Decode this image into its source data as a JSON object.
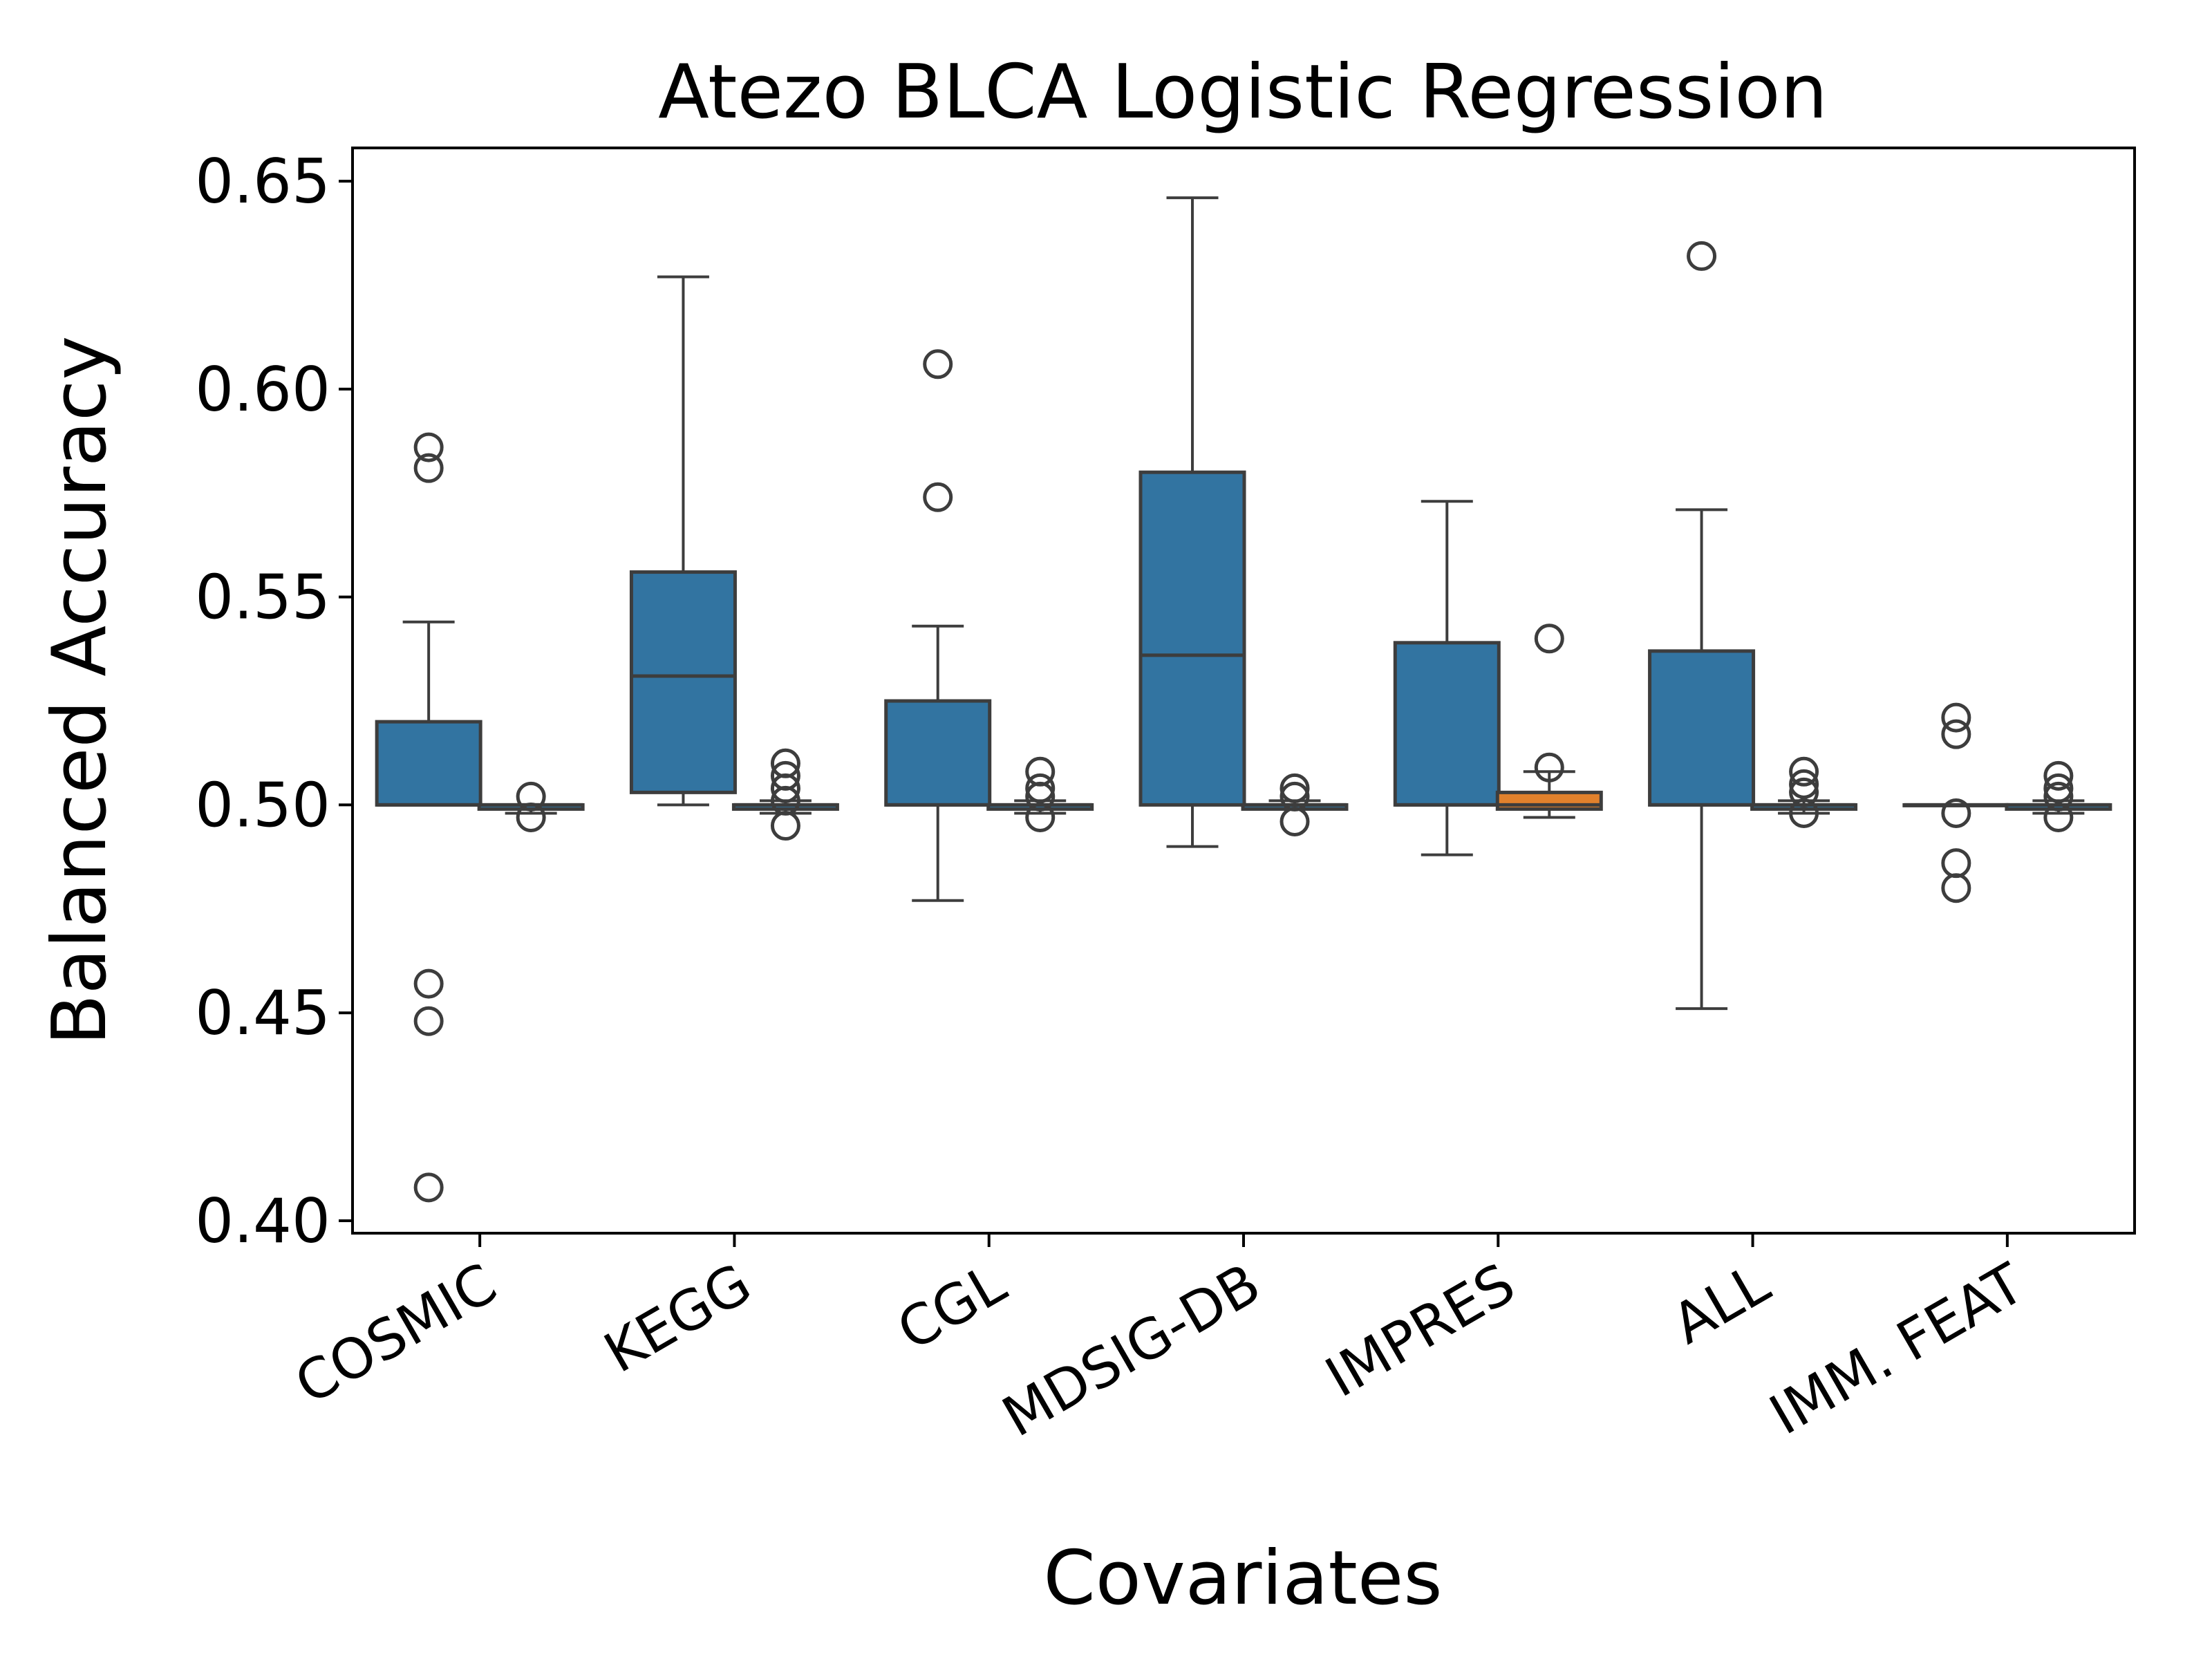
{
  "chart_data": {
    "type": "box",
    "title": "Atezo  BLCA  Logistic Regression",
    "xlabel": "Covariates",
    "ylabel": "Balanced Accuracy",
    "ylim": [
      0.397,
      0.658
    ],
    "yticks": [
      "0.40",
      "0.45",
      "0.50",
      "0.55",
      "0.60",
      "0.65"
    ],
    "categories": [
      "COSMIC",
      "KEGG",
      "CGL",
      "MDSIG-DB",
      "IMPRES",
      "ALL",
      "IMM. FEAT"
    ],
    "colors": {
      "series_a": "#3274a1",
      "series_b_impres": "#e1812c",
      "line": "#3d3d3d"
    },
    "series": [
      {
        "boxes": [
          {
            "category": "COSMIC",
            "whislo": 0.5,
            "q1": 0.5,
            "med": 0.5,
            "q3": 0.52,
            "whishi": 0.544,
            "fliers": [
              0.586,
              0.581,
              0.457,
              0.448,
              0.408
            ]
          },
          {
            "category": "KEGG",
            "whislo": 0.5,
            "q1": 0.503,
            "med": 0.531,
            "q3": 0.556,
            "whishi": 0.627,
            "fliers": []
          },
          {
            "category": "CGL",
            "whislo": 0.477,
            "q1": 0.5,
            "med": 0.5,
            "q3": 0.525,
            "whishi": 0.543,
            "fliers": [
              0.606,
              0.574
            ]
          },
          {
            "category": "MDSIG-DB",
            "whislo": 0.49,
            "q1": 0.5,
            "med": 0.536,
            "q3": 0.58,
            "whishi": 0.646,
            "fliers": []
          },
          {
            "category": "IMPRES",
            "whislo": 0.488,
            "q1": 0.5,
            "med": 0.5,
            "q3": 0.539,
            "whishi": 0.573,
            "fliers": []
          },
          {
            "category": "ALL",
            "whislo": 0.451,
            "q1": 0.5,
            "med": 0.5,
            "q3": 0.537,
            "whishi": 0.571,
            "fliers": [
              0.632
            ]
          },
          {
            "category": "IMM. FEAT",
            "whislo": 0.5,
            "q1": 0.5,
            "med": 0.5,
            "q3": 0.5,
            "whishi": 0.5,
            "fliers": [
              0.521,
              0.517,
              0.498,
              0.486,
              0.48
            ]
          }
        ]
      },
      {
        "boxes": [
          {
            "category": "COSMIC",
            "whislo": 0.498,
            "q1": 0.499,
            "med": 0.5,
            "q3": 0.5,
            "whishi": 0.5,
            "fliers": [
              0.502,
              0.497
            ]
          },
          {
            "category": "KEGG",
            "whislo": 0.498,
            "q1": 0.499,
            "med": 0.5,
            "q3": 0.5,
            "whishi": 0.501,
            "fliers": [
              0.51,
              0.507,
              0.504,
              0.501,
              0.495
            ]
          },
          {
            "category": "CGL",
            "whislo": 0.498,
            "q1": 0.499,
            "med": 0.5,
            "q3": 0.5,
            "whishi": 0.501,
            "fliers": [
              0.508,
              0.504,
              0.502,
              0.497
            ]
          },
          {
            "category": "MDSIG-DB",
            "whislo": 0.499,
            "q1": 0.499,
            "med": 0.5,
            "q3": 0.5,
            "whishi": 0.501,
            "fliers": [
              0.504,
              0.502,
              0.496
            ]
          },
          {
            "category": "IMPRES",
            "whislo": 0.497,
            "q1": 0.499,
            "med": 0.5,
            "q3": 0.503,
            "whishi": 0.508,
            "fliers": [
              0.54,
              0.509
            ]
          },
          {
            "category": "ALL",
            "whislo": 0.498,
            "q1": 0.499,
            "med": 0.5,
            "q3": 0.5,
            "whishi": 0.501,
            "fliers": [
              0.508,
              0.505,
              0.503,
              0.498
            ]
          },
          {
            "category": "IMM. FEAT",
            "whislo": 0.498,
            "q1": 0.499,
            "med": 0.5,
            "q3": 0.5,
            "whishi": 0.501,
            "fliers": [
              0.507,
              0.504,
              0.502,
              0.497
            ]
          }
        ]
      }
    ]
  }
}
